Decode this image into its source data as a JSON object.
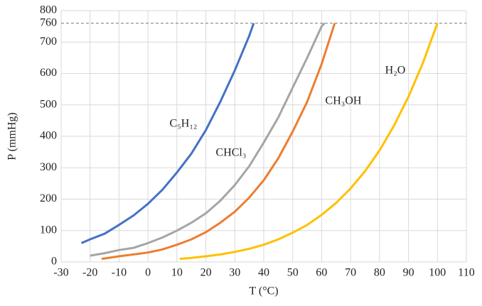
{
  "chart_data": {
    "type": "line",
    "x_label": "T (°C)",
    "y_label": "P (mmHg)",
    "xlim": [
      -30,
      110
    ],
    "xticks": [
      -30,
      -20,
      -10,
      0,
      10,
      20,
      30,
      40,
      50,
      60,
      70,
      80,
      90,
      100,
      110
    ],
    "ylim": [
      0,
      800
    ],
    "yticks": [
      0,
      100,
      200,
      300,
      400,
      500,
      600,
      700,
      760,
      800
    ],
    "grid": true,
    "reference_line": {
      "value": 760,
      "dash": true
    },
    "series": [
      {
        "name": "C₅H₁₂",
        "color": "#4472c4",
        "x": [
          -23,
          -20,
          -15,
          -10,
          -5,
          0,
          5,
          10,
          15,
          20,
          25,
          30,
          35,
          36.5
        ],
        "values": [
          60,
          72,
          90,
          118,
          148,
          185,
          230,
          285,
          345,
          420,
          510,
          610,
          720,
          760
        ]
      },
      {
        "name": "CHCl₃",
        "color": "#a5a5a5",
        "x": [
          -20,
          -15,
          -10,
          -5,
          0,
          5,
          10,
          15,
          20,
          25,
          30,
          35,
          40,
          45,
          50,
          55,
          60,
          61
        ],
        "values": [
          20,
          28,
          38,
          45,
          60,
          78,
          100,
          125,
          155,
          195,
          245,
          305,
          380,
          460,
          555,
          650,
          750,
          760
        ]
      },
      {
        "name": "CH₃OH",
        "color": "#ed7d31",
        "x": [
          -16,
          -10,
          -5,
          0,
          5,
          10,
          15,
          20,
          25,
          30,
          35,
          40,
          45,
          50,
          55,
          60,
          64.5
        ],
        "values": [
          10,
          18,
          24,
          30,
          40,
          55,
          72,
          95,
          125,
          160,
          205,
          260,
          330,
          415,
          510,
          630,
          760
        ]
      },
      {
        "name": "H₂O",
        "color": "#ffc000",
        "x": [
          11,
          15,
          20,
          25,
          30,
          35,
          40,
          45,
          50,
          55,
          60,
          65,
          70,
          75,
          80,
          85,
          90,
          95,
          100
        ],
        "values": [
          10,
          13,
          18,
          24,
          32,
          42,
          55,
          72,
          93,
          118,
          150,
          188,
          234,
          289,
          355,
          434,
          526,
          634,
          760
        ]
      }
    ]
  }
}
